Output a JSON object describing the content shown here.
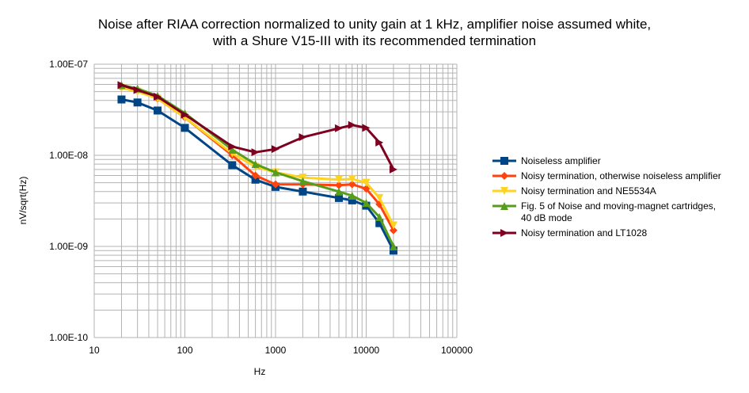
{
  "chart_data": {
    "type": "line",
    "title_lines": [
      "Noise after RIAA correction normalized to unity gain at 1 kHz, amplifier noise assumed white,",
      "with a Shure V15-III with its recommended termination"
    ],
    "xlabel": "Hz",
    "ylabel": "nV/sqrt(Hz)",
    "x_scale": "log",
    "y_scale": "log",
    "xlim": [
      10,
      100000
    ],
    "ylim": [
      1e-10,
      1e-07
    ],
    "x_ticks": [
      {
        "value": 10,
        "label": "10"
      },
      {
        "value": 100,
        "label": "100"
      },
      {
        "value": 1000,
        "label": "1000"
      },
      {
        "value": 10000,
        "label": "10000"
      },
      {
        "value": 100000,
        "label": "100000"
      }
    ],
    "y_ticks": [
      {
        "value": 1e-07,
        "label": "1.00E-07"
      },
      {
        "value": 1e-08,
        "label": "1.00E-08"
      },
      {
        "value": 1e-09,
        "label": "1.00E-09"
      },
      {
        "value": 1e-10,
        "label": "1.00E-10"
      }
    ],
    "grid": true,
    "legend_position": "right",
    "series": [
      {
        "name": "Noiseless amplifier",
        "color": "#004586",
        "marker": "square",
        "x": [
          20,
          30,
          50,
          100,
          333,
          600,
          1000,
          2000,
          5000,
          7000,
          10000,
          14000,
          20000
        ],
        "y": [
          4.1e-08,
          3.8e-08,
          3.1e-08,
          2e-08,
          7.8e-09,
          5.4e-09,
          4.5e-09,
          4e-09,
          3.4e-09,
          3.2e-09,
          2.8e-09,
          1.8e-09,
          9e-10
        ]
      },
      {
        "name": "Noisy termination, otherwise noiseless amplifier",
        "color": "#ff420e",
        "marker": "diamond",
        "x": [
          20,
          30,
          50,
          100,
          333,
          600,
          1000,
          2000,
          5000,
          7000,
          10000,
          14000,
          20000
        ],
        "y": [
          5.6e-08,
          5.1e-08,
          4.2e-08,
          2.6e-08,
          1e-08,
          6e-09,
          4.8e-09,
          4.8e-09,
          4.7e-09,
          4.8e-09,
          4.3e-09,
          2.9e-09,
          1.5e-09
        ]
      },
      {
        "name": "Noisy termination and NE5534A",
        "color": "#ffd320",
        "marker": "triangle-down",
        "x": [
          20,
          30,
          50,
          100,
          333,
          600,
          1000,
          2000,
          5000,
          7000,
          10000,
          14000,
          20000
        ],
        "y": [
          5.5e-08,
          5e-08,
          4.2e-08,
          2.6e-08,
          1.05e-08,
          7.5e-09,
          6.5e-09,
          5.7e-09,
          5.4e-09,
          5.5e-09,
          5e-09,
          3.4e-09,
          1.7e-09
        ]
      },
      {
        "name": "Fig. 5 of Noise and moving-magnet cartridges,",
        "name_line2": "40 dB mode",
        "color": "#579d1c",
        "marker": "triangle-up",
        "x": [
          20,
          30,
          50,
          100,
          333,
          600,
          1000,
          2000,
          5000,
          7000,
          10000,
          14000,
          20000
        ],
        "y": [
          5.9e-08,
          5.4e-08,
          4.5e-08,
          2.9e-08,
          1.15e-08,
          8e-09,
          6.5e-09,
          5.2e-09,
          4e-09,
          3.6e-09,
          3e-09,
          2.1e-09,
          1e-09
        ]
      },
      {
        "name": "Noisy termination and LT1028",
        "color": "#7e0021",
        "marker": "triangle-right",
        "x": [
          20,
          30,
          50,
          100,
          333,
          600,
          1000,
          2000,
          5000,
          7000,
          10000,
          14000,
          20000
        ],
        "y": [
          5.9e-08,
          5.2e-08,
          4.4e-08,
          2.8e-08,
          1.25e-08,
          1.08e-08,
          1.17e-08,
          1.58e-08,
          1.98e-08,
          2.15e-08,
          2e-08,
          1.38e-08,
          7e-09
        ]
      }
    ]
  }
}
